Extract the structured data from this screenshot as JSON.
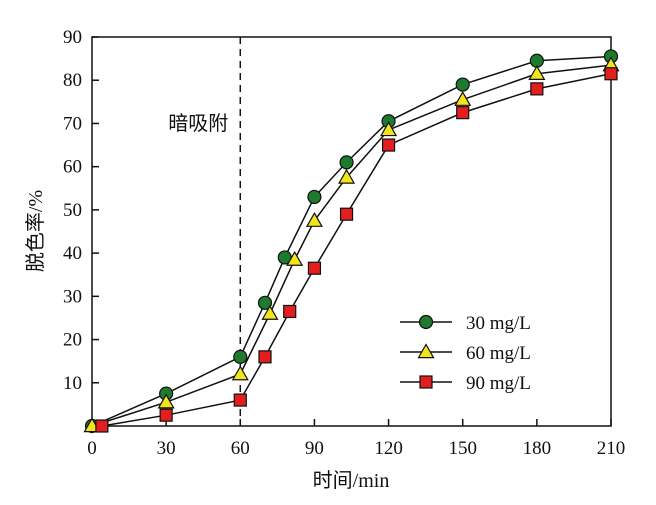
{
  "chart_data": {
    "type": "line",
    "title": "",
    "xlabel": "时间/min",
    "ylabel": "脱色率/%",
    "xlim": [
      0,
      210
    ],
    "ylim": [
      0,
      90
    ],
    "xticks": [
      0,
      30,
      60,
      90,
      120,
      150,
      180,
      210
    ],
    "yticks": [
      10,
      20,
      30,
      40,
      50,
      60,
      70,
      80,
      90
    ],
    "grid": false,
    "legend_position": "lower-right",
    "annotation": {
      "text": "暗吸附",
      "x": 60,
      "style": "dashed-vertical-line"
    },
    "series": [
      {
        "name": "30 mg/L",
        "marker": "circle",
        "color": "#1e7a2e",
        "x": [
          0,
          30,
          60,
          70,
          78,
          90,
          103,
          120,
          150,
          180,
          210
        ],
        "y": [
          0,
          7.5,
          16,
          28.5,
          39,
          53,
          61,
          70.5,
          79,
          84.5,
          85.5
        ]
      },
      {
        "name": "60 mg/L",
        "marker": "triangle",
        "color": "#f2e51a",
        "x": [
          0,
          30,
          60,
          72,
          82,
          90,
          103,
          120,
          150,
          180,
          210
        ],
        "y": [
          0,
          5.5,
          12,
          26,
          38.5,
          47.5,
          57.5,
          68.5,
          75.5,
          81.5,
          83.5
        ]
      },
      {
        "name": "90 mg/L",
        "marker": "square",
        "color": "#e21e1e",
        "x": [
          4,
          30,
          60,
          70,
          80,
          90,
          103,
          120,
          150,
          180,
          210
        ],
        "y": [
          0,
          2.5,
          6,
          16,
          26.5,
          36.5,
          49,
          65,
          72.5,
          78,
          81.5
        ]
      }
    ]
  }
}
